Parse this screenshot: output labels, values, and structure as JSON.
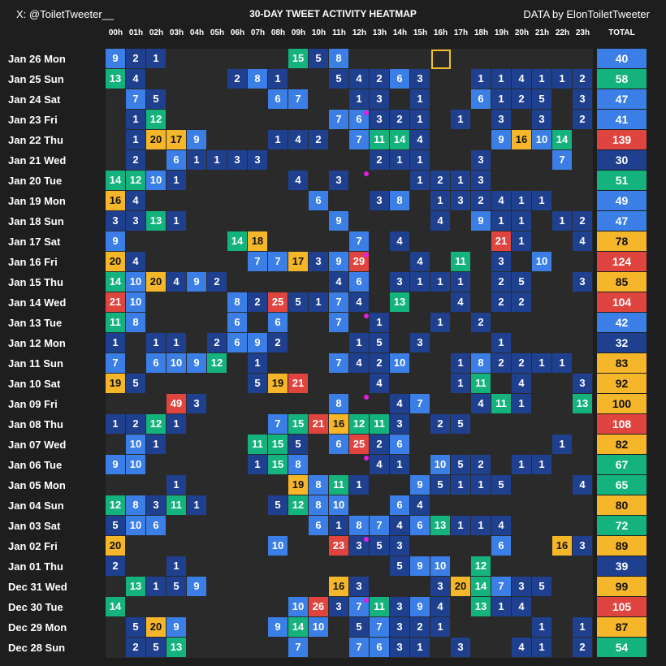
{
  "header": {
    "handle": "X: @ToiletTweeter__",
    "title": "30-DAY TWEET ACTIVITY HEATMAP",
    "credit": "DATA by ElonToiletTweeter",
    "total_label": "TOTAL"
  },
  "colors": {
    "background": "#1e1e1e",
    "grid_empty": "#2a2a2a",
    "low": "#1f3f8f",
    "mid": "#3a7ee6",
    "high": "#14b27d",
    "higher": "#f5b62a",
    "max": "#e0443f",
    "marker": "#f2c12e",
    "dot": "#e020e0"
  },
  "chart_data": {
    "type": "heatmap",
    "title": "30-DAY TWEET ACTIVITY HEATMAP",
    "x_labels": [
      "00h",
      "01h",
      "02h",
      "03h",
      "04h",
      "05h",
      "06h",
      "07h",
      "08h",
      "09h",
      "10h",
      "11h",
      "12h",
      "13h",
      "14h",
      "15h",
      "16h",
      "17h",
      "18h",
      "19h",
      "20h",
      "21h",
      "22h",
      "23h"
    ],
    "y_labels": [
      "Jan 26 Mon",
      "Jan 25 Sun",
      "Jan 24 Sat",
      "Jan 23 Fri",
      "Jan 22 Thu",
      "Jan 21 Wed",
      "Jan 20 Tue",
      "Jan 19 Mon",
      "Jan 18 Sun",
      "Jan 17 Sat",
      "Jan 16 Fri",
      "Jan 15 Thu",
      "Jan 14 Wed",
      "Jan 13 Tue",
      "Jan 12 Mon",
      "Jan 11 Sun",
      "Jan 10 Sat",
      "Jan 09 Fri",
      "Jan 08 Thu",
      "Jan 07 Wed",
      "Jan 06 Tue",
      "Jan 05 Mon",
      "Jan 04 Sun",
      "Jan 03 Sat",
      "Jan 02 Fri",
      "Jan 01 Thu",
      "Dec 31 Wed",
      "Dec 30 Tue",
      "Dec 29 Mon",
      "Dec 28 Sun"
    ],
    "values": [
      [
        9,
        2,
        1,
        0,
        0,
        0,
        0,
        0,
        0,
        15,
        5,
        8,
        0,
        0,
        0,
        0,
        0,
        0,
        0,
        0,
        0,
        0,
        0,
        0
      ],
      [
        13,
        4,
        0,
        0,
        0,
        0,
        2,
        8,
        1,
        0,
        0,
        5,
        4,
        2,
        6,
        3,
        0,
        0,
        1,
        1,
        4,
        1,
        1,
        2
      ],
      [
        0,
        7,
        5,
        0,
        0,
        0,
        0,
        0,
        6,
        7,
        0,
        0,
        1,
        3,
        0,
        1,
        0,
        0,
        6,
        1,
        2,
        5,
        0,
        3
      ],
      [
        0,
        1,
        12,
        0,
        0,
        0,
        0,
        0,
        0,
        0,
        0,
        7,
        6,
        3,
        2,
        1,
        0,
        1,
        0,
        3,
        0,
        3,
        0,
        2
      ],
      [
        0,
        1,
        20,
        17,
        9,
        0,
        0,
        0,
        1,
        4,
        2,
        0,
        7,
        11,
        14,
        4,
        0,
        0,
        0,
        9,
        16,
        10,
        14,
        0
      ],
      [
        0,
        2,
        0,
        6,
        1,
        1,
        3,
        3,
        0,
        0,
        0,
        0,
        0,
        2,
        1,
        1,
        0,
        0,
        3,
        0,
        0,
        0,
        7,
        0
      ],
      [
        14,
        12,
        10,
        1,
        0,
        0,
        0,
        0,
        0,
        4,
        0,
        3,
        0,
        0,
        0,
        1,
        2,
        1,
        3,
        0,
        0,
        0,
        0,
        0
      ],
      [
        16,
        4,
        0,
        0,
        0,
        0,
        0,
        0,
        0,
        0,
        6,
        0,
        0,
        3,
        8,
        0,
        1,
        3,
        2,
        4,
        1,
        1,
        0,
        0
      ],
      [
        3,
        3,
        13,
        1,
        0,
        0,
        0,
        0,
        0,
        0,
        0,
        9,
        0,
        0,
        0,
        0,
        4,
        0,
        9,
        1,
        1,
        0,
        1,
        2
      ],
      [
        9,
        0,
        0,
        0,
        0,
        0,
        14,
        18,
        0,
        0,
        0,
        0,
        7,
        0,
        4,
        0,
        0,
        0,
        0,
        21,
        1,
        0,
        0,
        4
      ],
      [
        20,
        4,
        0,
        0,
        0,
        0,
        0,
        7,
        7,
        17,
        3,
        9,
        29,
        0,
        0,
        4,
        0,
        11,
        0,
        3,
        0,
        10,
        0,
        0
      ],
      [
        14,
        10,
        20,
        4,
        9,
        2,
        0,
        0,
        0,
        0,
        0,
        4,
        6,
        0,
        3,
        1,
        1,
        1,
        0,
        2,
        5,
        0,
        0,
        3
      ],
      [
        21,
        10,
        0,
        0,
        0,
        0,
        8,
        2,
        25,
        5,
        1,
        7,
        4,
        0,
        13,
        0,
        0,
        4,
        0,
        2,
        2,
        0,
        0,
        0
      ],
      [
        11,
        8,
        0,
        0,
        0,
        0,
        6,
        0,
        6,
        0,
        0,
        7,
        0,
        1,
        0,
        0,
        1,
        0,
        2,
        0,
        0,
        0,
        0,
        0
      ],
      [
        1,
        0,
        1,
        1,
        0,
        2,
        6,
        9,
        2,
        0,
        0,
        0,
        1,
        5,
        0,
        3,
        0,
        0,
        0,
        1,
        0,
        0,
        0,
        0
      ],
      [
        7,
        0,
        6,
        10,
        9,
        12,
        0,
        1,
        0,
        0,
        0,
        7,
        4,
        2,
        10,
        0,
        0,
        1,
        8,
        2,
        2,
        1,
        1,
        0
      ],
      [
        19,
        5,
        0,
        0,
        0,
        0,
        0,
        5,
        19,
        21,
        0,
        0,
        0,
        4,
        0,
        0,
        0,
        1,
        11,
        0,
        4,
        0,
        0,
        3
      ],
      [
        0,
        0,
        0,
        49,
        3,
        0,
        0,
        0,
        0,
        0,
        0,
        8,
        0,
        0,
        4,
        7,
        0,
        0,
        4,
        11,
        1,
        0,
        0,
        13
      ],
      [
        1,
        2,
        12,
        1,
        0,
        0,
        0,
        0,
        7,
        15,
        21,
        16,
        12,
        11,
        3,
        0,
        2,
        5,
        0,
        0,
        0,
        0,
        0,
        0
      ],
      [
        0,
        10,
        1,
        0,
        0,
        0,
        0,
        11,
        15,
        5,
        0,
        6,
        25,
        2,
        6,
        0,
        0,
        0,
        0,
        0,
        0,
        0,
        1,
        0
      ],
      [
        9,
        10,
        0,
        0,
        0,
        0,
        0,
        1,
        15,
        8,
        0,
        0,
        0,
        4,
        1,
        0,
        10,
        5,
        2,
        0,
        1,
        1,
        0,
        0
      ],
      [
        0,
        0,
        0,
        1,
        0,
        0,
        0,
        0,
        0,
        19,
        8,
        11,
        1,
        0,
        0,
        9,
        5,
        1,
        1,
        5,
        0,
        0,
        0,
        4
      ],
      [
        12,
        8,
        3,
        11,
        1,
        0,
        0,
        0,
        5,
        12,
        8,
        10,
        0,
        0,
        6,
        4,
        0,
        0,
        0,
        0,
        0,
        0,
        0,
        0
      ],
      [
        5,
        10,
        6,
        0,
        0,
        0,
        0,
        0,
        0,
        0,
        6,
        1,
        8,
        7,
        4,
        6,
        13,
        1,
        1,
        4,
        0,
        0,
        0,
        0
      ],
      [
        20,
        0,
        0,
        0,
        0,
        0,
        0,
        0,
        10,
        0,
        0,
        23,
        3,
        5,
        3,
        0,
        0,
        0,
        0,
        6,
        0,
        0,
        16,
        3
      ],
      [
        2,
        0,
        0,
        1,
        0,
        0,
        0,
        0,
        0,
        0,
        0,
        0,
        0,
        0,
        5,
        9,
        10,
        0,
        12,
        0,
        0,
        0,
        0,
        0
      ],
      [
        0,
        13,
        1,
        5,
        9,
        0,
        0,
        0,
        0,
        0,
        0,
        16,
        3,
        0,
        0,
        0,
        3,
        20,
        14,
        7,
        3,
        5,
        0,
        0
      ],
      [
        14,
        0,
        0,
        0,
        0,
        0,
        0,
        0,
        0,
        10,
        26,
        3,
        7,
        11,
        3,
        9,
        4,
        0,
        13,
        1,
        4,
        0,
        0,
        0
      ],
      [
        0,
        5,
        20,
        9,
        0,
        0,
        0,
        0,
        9,
        14,
        10,
        0,
        5,
        7,
        3,
        2,
        1,
        0,
        0,
        0,
        0,
        1,
        0,
        1
      ],
      [
        0,
        2,
        5,
        13,
        0,
        0,
        0,
        0,
        0,
        7,
        0,
        0,
        7,
        6,
        3,
        1,
        0,
        3,
        0,
        0,
        4,
        1,
        0,
        2
      ]
    ],
    "totals": [
      40,
      58,
      47,
      41,
      139,
      30,
      51,
      49,
      47,
      78,
      124,
      85,
      104,
      42,
      32,
      83,
      92,
      100,
      108,
      82,
      67,
      65,
      80,
      72,
      89,
      39,
      99,
      105,
      87,
      54
    ],
    "current_cell": {
      "row": "Jan 26 Mon",
      "col": "16h"
    },
    "dot_markers": [
      {
        "row": "Jan 23 Fri",
        "col": "12h"
      },
      {
        "row": "Jan 20 Tue",
        "col": "12h"
      },
      {
        "row": "Jan 16 Fri",
        "col": "12h"
      },
      {
        "row": "Jan 13 Tue",
        "col": "12h"
      },
      {
        "row": "Jan 09 Fri",
        "col": "12h"
      },
      {
        "row": "Jan 06 Tue",
        "col": "12h"
      },
      {
        "row": "Jan 02 Fri",
        "col": "12h"
      },
      {
        "row": "Dec 30 Tue",
        "col": "12h"
      }
    ],
    "color_scale": [
      {
        "max": 5,
        "color": "low"
      },
      {
        "max": 10,
        "color": "mid"
      },
      {
        "max": 15,
        "color": "high"
      },
      {
        "max": 20,
        "color": "higher"
      },
      {
        "max": 1000,
        "color": "max"
      }
    ],
    "total_scale": [
      {
        "max": 39,
        "color": "low"
      },
      {
        "max": 49,
        "color": "mid"
      },
      {
        "max": 75,
        "color": "high"
      },
      {
        "max": 100,
        "color": "higher"
      },
      {
        "max": 100000,
        "color": "max"
      }
    ]
  }
}
